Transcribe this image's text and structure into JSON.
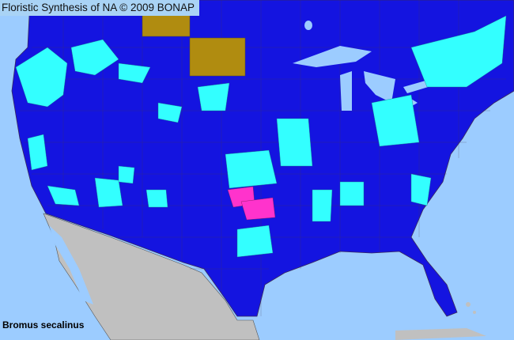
{
  "header": {
    "title": "Floristic Synthesis of NA © 2009 BONAP"
  },
  "map": {
    "species": "Bromus secalinus",
    "colors": {
      "ocean": "#9cccff",
      "present_county": "#1414e0",
      "species_county": "#33ffff",
      "noxious_or_special": "#ff33cc",
      "canada_province_present": "#b08c10",
      "mexico": "#c0c0c0",
      "county_lines": "#5a4a4a"
    }
  }
}
